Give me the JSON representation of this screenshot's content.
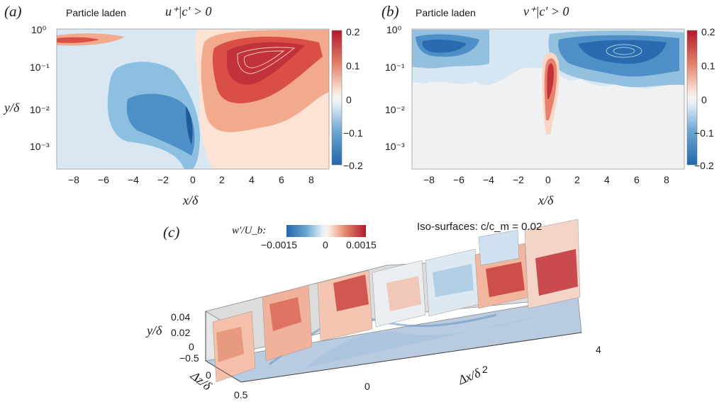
{
  "panel_a": {
    "letter": "(a)",
    "case_label": "Particle laden",
    "condition": "u⁺|c′ > 0",
    "x_axis_label": "x/δ",
    "y_axis_label": "y/δ",
    "x_ticks": [
      "−8",
      "−6",
      "−4",
      "−2",
      "0",
      "2",
      "4",
      "6",
      "8"
    ],
    "y_ticks": [
      "10⁰",
      "10⁻¹",
      "10⁻²",
      "10⁻³"
    ],
    "colorbar_ticks": [
      "0.2",
      "0.1",
      "0",
      "−0.1",
      "−0.2"
    ]
  },
  "panel_b": {
    "letter": "(b)",
    "case_label": "Particle laden",
    "condition": "v⁺|c′ > 0",
    "x_axis_label": "x/δ",
    "y_axis_label": "y/δ",
    "x_ticks": [
      "−8",
      "−6",
      "−4",
      "−2",
      "0",
      "2",
      "4",
      "6",
      "8"
    ],
    "y_ticks": [
      "10⁰",
      "10⁻¹",
      "10⁻²",
      "10⁻³"
    ],
    "colorbar_ticks": [
      "0.2",
      "0.1",
      "0",
      "−0.1",
      "−0.2"
    ]
  },
  "panel_c": {
    "letter": "(c)",
    "colorbar_label": "w′/U_b:",
    "colorbar_ticks": [
      "−0.0015",
      "0",
      "0.0015"
    ],
    "iso_label": "Iso-surfaces: c/c_m = 0.02",
    "y_axis_label": "y/δ",
    "y_ticks": [
      "0.04",
      "0.02",
      "0"
    ],
    "z_axis_label": "Δz/δ",
    "z_ticks": [
      "−0.5",
      "0",
      "0.5"
    ],
    "x_axis_label": "Δx/δ",
    "x_ticks": [
      "0",
      "2",
      "4"
    ]
  },
  "colors": {
    "diverging": [
      "#2166ac",
      "#4393c3",
      "#92c5de",
      "#d1e5f0",
      "#f0f0f0",
      "#fddbc7",
      "#f4a582",
      "#d6604d",
      "#b2182b"
    ]
  }
}
